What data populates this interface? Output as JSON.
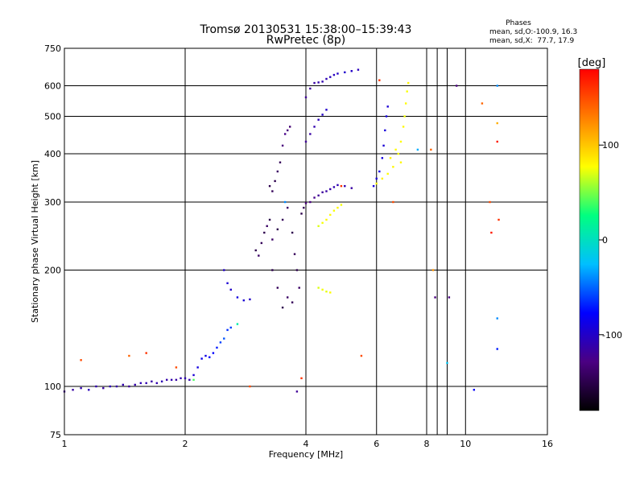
{
  "chart_data": {
    "type": "scatter",
    "title": "Tromsø 20130531 15:38:00–15:39:43",
    "subtitle": "RwPretec (8p)",
    "xlabel": "Frequency [MHz]",
    "ylabel": "Stationary phase Virtual Height [km]",
    "x_scale": "log",
    "y_scale": "log",
    "xlim": [
      1,
      16
    ],
    "ylim": [
      75,
      750
    ],
    "x_ticks": [
      1,
      2,
      4,
      6,
      8,
      10,
      16
    ],
    "x_minor_ticks": [
      8.5,
      9
    ],
    "y_ticks": [
      75,
      100,
      200,
      300,
      400,
      500,
      600,
      750
    ],
    "grid": true,
    "phases_box": {
      "title": "Phases",
      "line_o": "mean, sd,O:-100.9, 16.3",
      "line_x": "mean, sd,X:  77.7, 17.9"
    },
    "colorbar": {
      "label": "[deg]",
      "range": [
        -180,
        180
      ],
      "ticks": [
        100,
        0,
        -100
      ],
      "colors": [
        "#000000",
        "#4b0082",
        "#0000ff",
        "#00bfff",
        "#00ff80",
        "#ffff00",
        "#ff8000",
        "#ff0000"
      ]
    },
    "series": [
      {
        "points": [
          [
            1.0,
            97,
            -120
          ],
          [
            1.05,
            98,
            -115
          ],
          [
            1.1,
            99,
            -110
          ],
          [
            1.15,
            98,
            -105
          ],
          [
            1.2,
            100,
            -110
          ],
          [
            1.25,
            99,
            -115
          ],
          [
            1.3,
            100,
            -108
          ],
          [
            1.35,
            100,
            -112
          ],
          [
            1.4,
            101,
            -110
          ],
          [
            1.45,
            100,
            -118
          ],
          [
            1.5,
            101,
            -112
          ],
          [
            1.55,
            102,
            -108
          ],
          [
            1.6,
            102,
            -110
          ],
          [
            1.65,
            103,
            -114
          ],
          [
            1.7,
            102,
            -110
          ],
          [
            1.75,
            103,
            -108
          ],
          [
            1.8,
            104,
            -112
          ],
          [
            1.85,
            104,
            -110
          ],
          [
            1.9,
            104,
            -115
          ],
          [
            1.95,
            105,
            -110
          ],
          [
            2.0,
            105,
            -108
          ],
          [
            2.05,
            104,
            -110
          ],
          [
            2.1,
            107,
            -95
          ],
          [
            2.15,
            112,
            -90
          ],
          [
            2.2,
            118,
            -85
          ],
          [
            2.25,
            120,
            -88
          ],
          [
            2.3,
            119,
            -80
          ],
          [
            2.35,
            122,
            -78
          ],
          [
            2.4,
            126,
            -70
          ],
          [
            2.45,
            130,
            -60
          ],
          [
            2.5,
            133,
            -55
          ],
          [
            2.55,
            140,
            -65
          ],
          [
            2.6,
            142,
            -60
          ],
          [
            2.5,
            200,
            -100
          ],
          [
            2.55,
            185,
            -95
          ],
          [
            2.6,
            178,
            -100
          ],
          [
            2.7,
            170,
            -90
          ],
          [
            2.8,
            167,
            -95
          ],
          [
            2.9,
            168,
            -100
          ],
          [
            3.0,
            225,
            -150
          ],
          [
            3.05,
            218,
            -140
          ],
          [
            3.1,
            235,
            -145
          ],
          [
            3.15,
            250,
            -150
          ],
          [
            3.2,
            260,
            -140
          ],
          [
            3.25,
            270,
            -150
          ],
          [
            3.25,
            330,
            -150
          ],
          [
            3.3,
            320,
            -145
          ],
          [
            3.35,
            340,
            -150
          ],
          [
            3.4,
            360,
            -140
          ],
          [
            3.45,
            380,
            -145
          ],
          [
            3.5,
            420,
            -130
          ],
          [
            3.55,
            450,
            -125
          ],
          [
            3.6,
            460,
            -130
          ],
          [
            3.65,
            470,
            -135
          ],
          [
            3.3,
            200,
            -150
          ],
          [
            3.4,
            180,
            -145
          ],
          [
            3.5,
            160,
            -150
          ],
          [
            3.6,
            170,
            -140
          ],
          [
            3.7,
            165,
            -145
          ],
          [
            3.3,
            240,
            -140
          ],
          [
            3.4,
            255,
            -150
          ],
          [
            3.5,
            270,
            -145
          ],
          [
            3.6,
            290,
            -140
          ],
          [
            3.7,
            250,
            -150
          ],
          [
            3.75,
            220,
            -145
          ],
          [
            3.8,
            200,
            -150
          ],
          [
            3.85,
            180,
            -140
          ],
          [
            3.9,
            280,
            -150
          ],
          [
            3.95,
            290,
            -145
          ],
          [
            4.0,
            298,
            -130
          ],
          [
            4.1,
            300,
            -128
          ],
          [
            4.2,
            308,
            -125
          ],
          [
            4.3,
            312,
            -120
          ],
          [
            4.4,
            318,
            -118
          ],
          [
            4.5,
            320,
            -115
          ],
          [
            4.6,
            324,
            -112
          ],
          [
            4.7,
            328,
            -110
          ],
          [
            4.8,
            332,
            -108
          ],
          [
            5.0,
            330,
            -110
          ],
          [
            5.2,
            326,
            -115
          ],
          [
            4.0,
            430,
            -120
          ],
          [
            4.1,
            450,
            -115
          ],
          [
            4.2,
            470,
            -110
          ],
          [
            4.3,
            490,
            -105
          ],
          [
            4.4,
            505,
            -100
          ],
          [
            4.5,
            520,
            -98
          ],
          [
            4.0,
            560,
            -120
          ],
          [
            4.1,
            590,
            -118
          ],
          [
            4.2,
            610,
            -115
          ],
          [
            4.3,
            612,
            -112
          ],
          [
            4.4,
            615,
            -110
          ],
          [
            4.5,
            625,
            -108
          ],
          [
            4.6,
            632,
            -105
          ],
          [
            4.7,
            640,
            -103
          ],
          [
            4.8,
            645,
            -100
          ],
          [
            5.0,
            650,
            -98
          ],
          [
            5.2,
            655,
            -100
          ],
          [
            5.4,
            660,
            -105
          ],
          [
            5.9,
            330,
            -90
          ],
          [
            6.0,
            345,
            -95
          ],
          [
            6.1,
            360,
            -88
          ],
          [
            6.2,
            390,
            -90
          ],
          [
            6.25,
            420,
            -95
          ],
          [
            6.3,
            460,
            -92
          ],
          [
            6.35,
            500,
            -90
          ],
          [
            6.4,
            530,
            -95
          ]
        ]
      },
      {
        "points": [
          [
            4.3,
            260,
            70
          ],
          [
            4.4,
            265,
            75
          ],
          [
            4.5,
            270,
            80
          ],
          [
            4.6,
            278,
            78
          ],
          [
            4.7,
            285,
            76
          ],
          [
            4.8,
            290,
            80
          ],
          [
            4.9,
            295,
            75
          ],
          [
            4.3,
            180,
            70
          ],
          [
            4.4,
            178,
            75
          ],
          [
            4.5,
            176,
            72
          ],
          [
            4.6,
            175,
            78
          ],
          [
            6.0,
            335,
            80
          ],
          [
            6.2,
            345,
            82
          ],
          [
            6.4,
            355,
            78
          ],
          [
            6.6,
            370,
            80
          ],
          [
            6.8,
            400,
            76
          ],
          [
            6.9,
            430,
            78
          ],
          [
            7.0,
            470,
            80
          ],
          [
            7.05,
            500,
            75
          ],
          [
            7.1,
            540,
            78
          ],
          [
            7.15,
            580,
            76
          ],
          [
            7.2,
            610,
            80
          ],
          [
            6.5,
            390,
            82
          ],
          [
            6.7,
            410,
            78
          ],
          [
            6.9,
            380,
            80
          ]
        ]
      },
      {
        "points": [
          [
            1.1,
            117,
            150
          ],
          [
            1.45,
            120,
            140
          ],
          [
            1.6,
            122,
            160
          ],
          [
            1.9,
            112,
            150
          ],
          [
            2.1,
            104,
            40
          ],
          [
            2.7,
            145,
            10
          ],
          [
            2.9,
            100,
            150
          ],
          [
            3.55,
            300,
            -40
          ],
          [
            3.8,
            97,
            -120
          ],
          [
            3.9,
            105,
            160
          ],
          [
            4.9,
            330,
            160
          ],
          [
            5.5,
            120,
            150
          ],
          [
            6.1,
            620,
            160
          ],
          [
            6.6,
            300,
            150
          ],
          [
            7.6,
            410,
            -30
          ],
          [
            8.2,
            410,
            140
          ],
          [
            8.3,
            200,
            120
          ],
          [
            8.4,
            170,
            -130
          ],
          [
            9.0,
            115,
            -20
          ],
          [
            9.1,
            170,
            -130
          ],
          [
            9.5,
            600,
            -130
          ],
          [
            10.5,
            98,
            -80
          ],
          [
            11.0,
            540,
            140
          ],
          [
            11.5,
            300,
            150
          ],
          [
            11.6,
            250,
            170
          ],
          [
            12.0,
            600,
            -40
          ],
          [
            12.0,
            480,
            110
          ],
          [
            12.0,
            430,
            170
          ],
          [
            12.0,
            150,
            -40
          ],
          [
            12.1,
            270,
            160
          ],
          [
            12.0,
            125,
            -70
          ]
        ]
      }
    ]
  }
}
